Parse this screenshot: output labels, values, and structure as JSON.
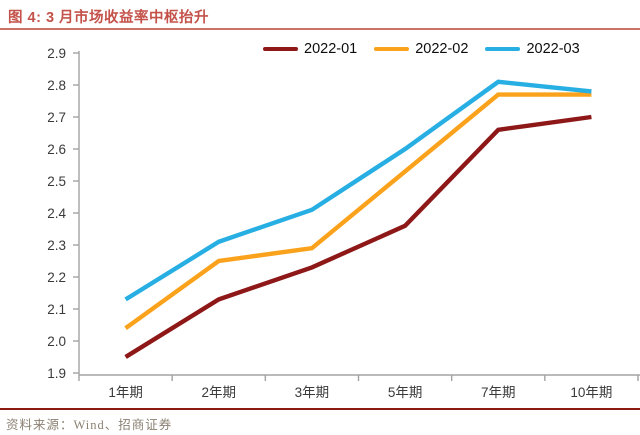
{
  "header": {
    "title": "图 4: 3 月市场收益率中枢抬升"
  },
  "footer": {
    "source": "资料来源：Wind、招商证券"
  },
  "colors": {
    "title_red": "#C4524A",
    "title_rule": "#CC7266",
    "footer_rule": "#8E1B12",
    "axis_gray": "#A3A3A3",
    "tick_label": "#3A3A3A"
  },
  "chart_data": {
    "type": "line",
    "categories": [
      "1年期",
      "2年期",
      "3年期",
      "5年期",
      "7年期",
      "10年期"
    ],
    "series": [
      {
        "name": "2022-01",
        "color": "#8E1818",
        "values": [
          1.95,
          2.13,
          2.23,
          2.36,
          2.66,
          2.7
        ]
      },
      {
        "name": "2022-02",
        "color": "#FAA21B",
        "values": [
          2.04,
          2.25,
          2.29,
          2.53,
          2.77,
          2.77
        ]
      },
      {
        "name": "2022-03",
        "color": "#27AEE3",
        "values": [
          2.13,
          2.31,
          2.41,
          2.6,
          2.81,
          2.78
        ]
      }
    ],
    "ylim": [
      1.9,
      2.9
    ],
    "ytick_step": 0.1,
    "grid": false,
    "legend_position": "top"
  }
}
